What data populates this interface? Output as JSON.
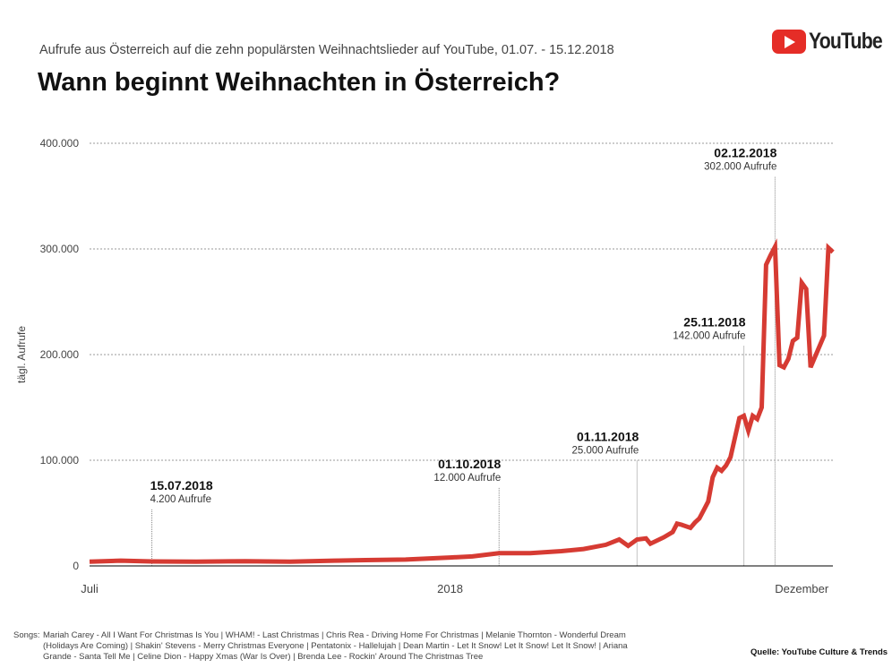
{
  "header": {
    "subtitle": "Aufrufe aus Österreich auf die zehn populärsten Weihnachtslieder auf YouTube, 01.07. - 15.12.2018",
    "title": "Wann beginnt Weihnachten in Österreich?",
    "logo_text": "YouTube"
  },
  "chart_data": {
    "type": "line",
    "title": "Wann beginnt Weihnachten in Österreich?",
    "ylabel": "tägl. Aufrufe",
    "xlabel": "",
    "ylim": [
      0,
      400000
    ],
    "xlim": [
      "2018-07-01",
      "2018-12-15"
    ],
    "grid": true,
    "line_color": "#d63b33",
    "y_ticks": [
      {
        "value": 0,
        "label": "0"
      },
      {
        "value": 100000,
        "label": "100.000"
      },
      {
        "value": 200000,
        "label": "200.000"
      },
      {
        "value": 300000,
        "label": "300.000"
      },
      {
        "value": 400000,
        "label": "400.000"
      }
    ],
    "x_ticks": [
      {
        "date": "2018-07-01",
        "label": "Juli"
      },
      {
        "date": "2018-09-20",
        "label": "2018"
      },
      {
        "date": "2018-12-08",
        "label": "Dezember"
      }
    ],
    "series": [
      {
        "points": [
          [
            "2018-07-01",
            4000
          ],
          [
            "2018-07-08",
            5000
          ],
          [
            "2018-07-15",
            4200
          ],
          [
            "2018-07-25",
            4000
          ],
          [
            "2018-08-05",
            4500
          ],
          [
            "2018-08-15",
            4000
          ],
          [
            "2018-08-25",
            5000
          ],
          [
            "2018-09-01",
            5500
          ],
          [
            "2018-09-10",
            6000
          ],
          [
            "2018-09-15",
            7000
          ],
          [
            "2018-09-20",
            8000
          ],
          [
            "2018-09-25",
            9000
          ],
          [
            "2018-10-01",
            12000
          ],
          [
            "2018-10-08",
            12000
          ],
          [
            "2018-10-15",
            14000
          ],
          [
            "2018-10-20",
            16000
          ],
          [
            "2018-10-25",
            20000
          ],
          [
            "2018-10-28",
            25000
          ],
          [
            "2018-10-30",
            19000
          ],
          [
            "2018-11-01",
            25000
          ],
          [
            "2018-11-03",
            26000
          ],
          [
            "2018-11-04",
            21000
          ],
          [
            "2018-11-07",
            27000
          ],
          [
            "2018-11-09",
            32000
          ],
          [
            "2018-11-10",
            40000
          ],
          [
            "2018-11-11",
            39000
          ],
          [
            "2018-11-13",
            36000
          ],
          [
            "2018-11-14",
            41000
          ],
          [
            "2018-11-15",
            45000
          ],
          [
            "2018-11-16",
            53000
          ],
          [
            "2018-11-17",
            61000
          ],
          [
            "2018-11-18",
            84000
          ],
          [
            "2018-11-19",
            93000
          ],
          [
            "2018-11-20",
            90000
          ],
          [
            "2018-11-21",
            95000
          ],
          [
            "2018-11-22",
            103000
          ],
          [
            "2018-11-24",
            140000
          ],
          [
            "2018-11-25",
            142000
          ],
          [
            "2018-11-26",
            128000
          ],
          [
            "2018-11-27",
            142000
          ],
          [
            "2018-11-28",
            139000
          ],
          [
            "2018-11-29",
            150000
          ],
          [
            "2018-11-30",
            285000
          ],
          [
            "2018-12-01",
            294000
          ],
          [
            "2018-12-02",
            302000
          ],
          [
            "2018-12-03",
            190000
          ],
          [
            "2018-12-04",
            188000
          ],
          [
            "2018-12-05",
            196000
          ],
          [
            "2018-12-06",
            213000
          ],
          [
            "2018-12-07",
            216000
          ],
          [
            "2018-12-08",
            268000
          ],
          [
            "2018-12-09",
            262000
          ],
          [
            "2018-12-10",
            188000
          ],
          [
            "2018-12-11",
            198000
          ],
          [
            "2018-12-13",
            218000
          ],
          [
            "2018-12-14",
            301000
          ],
          [
            "2018-12-15",
            297000
          ]
        ]
      }
    ],
    "annotations": [
      {
        "date": "2018-07-15",
        "value": 4200,
        "label_date": "15.07.2018",
        "label_value": "4.200 Aufrufe",
        "align": "start"
      },
      {
        "date": "2018-10-01",
        "value": 12000,
        "label_date": "01.10.2018",
        "label_value": "12.000 Aufrufe",
        "align": "end"
      },
      {
        "date": "2018-11-01",
        "value": 25000,
        "label_date": "01.11.2018",
        "label_value": "25.000 Aufrufe",
        "align": "end"
      },
      {
        "date": "2018-11-25",
        "value": 142000,
        "label_date": "25.11.2018",
        "label_value": "142.000 Aufrufe",
        "align": "end"
      },
      {
        "date": "2018-12-02",
        "value": 302000,
        "label_date": "02.12.2018",
        "label_value": "302.000 Aufrufe",
        "align": "end"
      }
    ]
  },
  "footer": {
    "songs_label": "Songs:",
    "songs": "Mariah Carey - All I Want For Christmas Is You | WHAM! - Last Christmas | Chris Rea - Driving Home For Christmas | Melanie Thornton - Wonderful Dream (Holidays Are Coming) | Shakin' Stevens - Merry Christmas Everyone | Pentatonix - Hallelujah | Dean Martin - Let It Snow! Let It Snow! Let It Snow! | Ariana Grande - Santa Tell Me | Celine Dion - Happy Xmas (War Is Over) | Brenda Lee - Rockin' Around The Christmas Tree",
    "source": "Quelle: YouTube Culture & Trends"
  }
}
